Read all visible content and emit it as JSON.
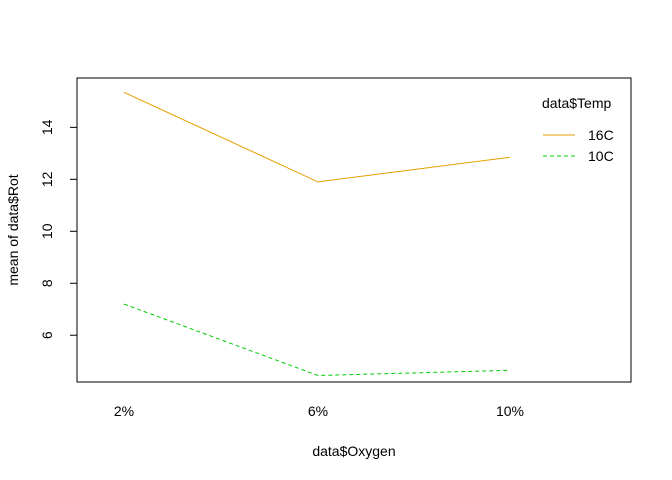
{
  "chart_data": {
    "type": "line",
    "title": "",
    "xlabel": "data$Oxygen",
    "ylabel": "mean of  data$Rot",
    "categories": [
      "2%",
      "6%",
      "10%"
    ],
    "yticks": [
      6,
      8,
      10,
      12,
      14
    ],
    "ylim": [
      4.2,
      15.9
    ],
    "grid": false,
    "legend": {
      "title": "data$Temp",
      "placement": "top-right"
    },
    "series": [
      {
        "name": "16C",
        "values": [
          15.35,
          11.9,
          12.85
        ],
        "color": "#E69F00",
        "dash": "solid"
      },
      {
        "name": "10C",
        "values": [
          7.2,
          4.45,
          4.65
        ],
        "color": "#00CC00",
        "dash": "dashed"
      }
    ]
  }
}
